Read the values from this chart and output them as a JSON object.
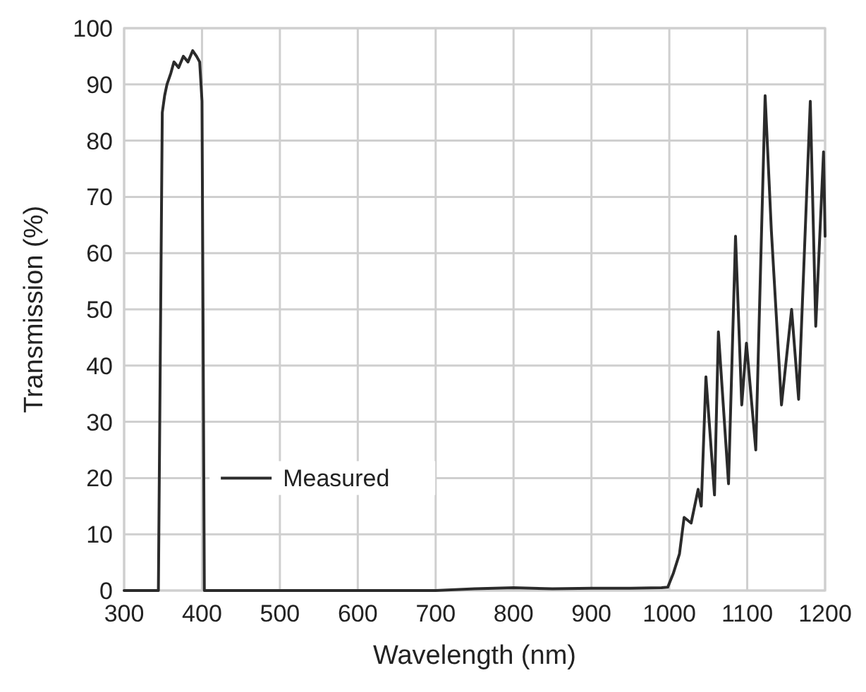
{
  "chart_data": {
    "type": "line",
    "xlabel": "Wavelength (nm)",
    "ylabel": "Transmission (%)",
    "xlim": [
      300,
      1200
    ],
    "ylim": [
      0,
      100
    ],
    "xticks": [
      300,
      400,
      500,
      600,
      700,
      800,
      900,
      1000,
      1100,
      1200
    ],
    "yticks": [
      0,
      10,
      20,
      30,
      40,
      50,
      60,
      70,
      80,
      90,
      100
    ],
    "grid": true,
    "legend": "bottom",
    "series": [
      {
        "name": "Measured",
        "color": "#2b2b2b",
        "x": [
          300,
          344,
          349,
          352,
          355,
          360,
          364,
          370,
          376,
          382,
          388,
          393,
          397,
          400,
          403,
          410,
          500,
          600,
          700,
          750,
          800,
          850,
          900,
          950,
          990,
          998,
          1005,
          1013,
          1019,
          1028,
          1037,
          1041,
          1047,
          1058,
          1063,
          1076,
          1085,
          1093,
          1099,
          1111,
          1123,
          1131,
          1144,
          1157,
          1166,
          1181,
          1188,
          1198,
          1200
        ],
        "values": [
          0,
          0,
          85,
          88,
          90,
          92,
          94,
          93,
          95,
          94,
          96,
          95,
          94,
          87,
          0,
          0,
          0,
          0,
          0,
          0.3,
          0.5,
          0.3,
          0.4,
          0.4,
          0.5,
          0.6,
          3,
          6.5,
          13,
          12,
          18,
          15,
          38,
          17,
          46,
          19,
          63,
          33,
          44,
          25,
          88,
          64,
          33,
          50,
          34,
          87,
          47,
          78,
          63
        ]
      }
    ]
  }
}
